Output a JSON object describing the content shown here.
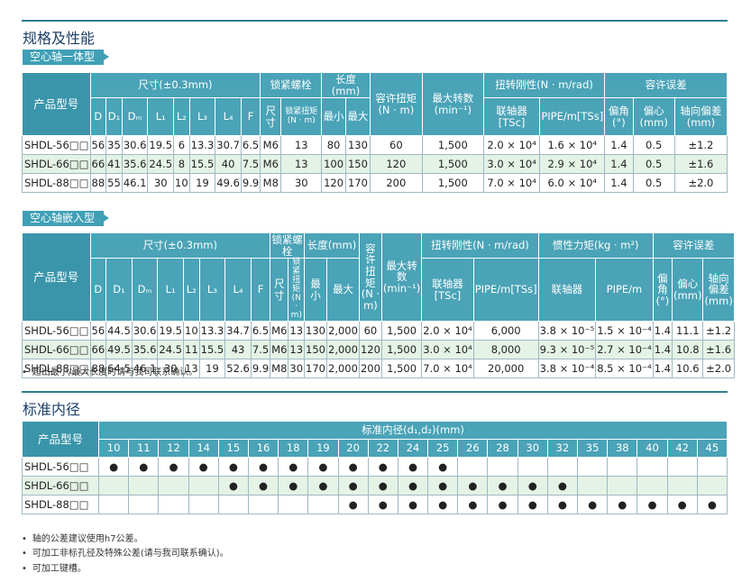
{
  "header": {
    "title": "规格及性能"
  },
  "table1": {
    "label": "空心轴一体型",
    "head1": [
      "产品型号",
      "尺寸(±0.3mm)",
      "锁紧螺栓",
      "长度(mm)",
      "容许扭矩(N · m)",
      "最大转数(min⁻¹)",
      "扭转刚性(N · m/rad)",
      "容许误差"
    ],
    "head2": [
      "D",
      "D₁",
      "Dₘ",
      "L₁",
      "L₂",
      "L₃",
      "L₄",
      "F",
      "尺寸",
      "锁紧扭矩(N · m)",
      "最小",
      "最大",
      "联轴器[TSc]",
      "PIPE/m[TSs]",
      "偏角(°)",
      "偏心(mm)",
      "轴向偏差(mm)"
    ],
    "rows": [
      [
        "SHDL-56□□",
        "56",
        "35",
        "30.6",
        "19.5",
        "6",
        "13.3",
        "30.7",
        "6.5",
        "M6",
        "13",
        "80",
        "130",
        "60",
        "1,500",
        "2.0 × 10⁴",
        "1.6 × 10⁴",
        "1.4",
        "0.5",
        "±1.2"
      ],
      [
        "SHDL-66□□",
        "66",
        "41",
        "35.6",
        "24.5",
        "8",
        "15.5",
        "40",
        "7.5",
        "M6",
        "13",
        "100",
        "150",
        "120",
        "1,500",
        "3.0 × 10⁴",
        "2.9 × 10⁴",
        "1.4",
        "0.5",
        "±1.6"
      ],
      [
        "SHDL-88□□",
        "88",
        "55",
        "46.1",
        "30",
        "10",
        "19",
        "49.6",
        "9.9",
        "M8",
        "30",
        "120",
        "170",
        "200",
        "1,500",
        "7.0 × 10⁴",
        "6.0 × 10⁴",
        "1.4",
        "0.5",
        "±2.0"
      ]
    ]
  },
  "table2": {
    "label": "空心轴嵌入型",
    "head1": [
      "产品型号",
      "尺寸(±0.3mm)",
      "锁紧螺栓",
      "长度(mm)",
      "容许扭矩(N · m)",
      "最大转数(min⁻¹)",
      "扭转刚性(N · m/rad)",
      "惯性力矩(kg · m²)",
      "容许误差"
    ],
    "head2": [
      "D",
      "D₁",
      "Dₘ",
      "L₁",
      "L₂",
      "L₃",
      "L₄",
      "F",
      "尺寸",
      "锁紧扭矩(N · m)",
      "最小",
      "最大",
      "联轴器[TSc]",
      "PIPE/m[TSs]",
      "联轴器",
      "PIPE/m",
      "偏角(°)",
      "偏心(mm)",
      "轴向偏差(mm)"
    ],
    "rows": [
      [
        "SHDL-56□□",
        "56",
        "44.5",
        "30.6",
        "19.5",
        "10",
        "13.3",
        "34.7",
        "6.5",
        "M6",
        "13",
        "130",
        "2,000",
        "60",
        "1,500",
        "2.0 × 10⁴",
        "6,000",
        "3.8 × 10⁻⁵",
        "1.5 × 10⁻⁴",
        "1.4",
        "11.1",
        "±1.2"
      ],
      [
        "SHDL-66□□",
        "66",
        "49.5",
        "35.6",
        "24.5",
        "11",
        "15.5",
        "43",
        "7.5",
        "M6",
        "13",
        "150",
        "2,000",
        "120",
        "1,500",
        "3.0 × 10⁴",
        "8,000",
        "9.3 × 10⁻⁵",
        "2.7 × 10⁻⁴",
        "1.4",
        "10.8",
        "±1.6"
      ],
      [
        "SHDL-88□□",
        "88",
        "64.5",
        "46.1",
        "30",
        "13",
        "19",
        "52.6",
        "9.9",
        "M8",
        "30",
        "170",
        "2,000",
        "200",
        "1,500",
        "7.0 × 10⁴",
        "20,000",
        "3.8 × 10⁻⁴",
        "8.5 × 10⁻⁴",
        "1.4",
        "10.6",
        "±2.0"
      ]
    ]
  },
  "notes1": [
    "超出最小/最大长度时请与我司联系确认。"
  ],
  "bore": {
    "title": "标准内径",
    "head1": [
      "产品型号",
      "标准内径(d₁,d₂)(mm)"
    ],
    "diameters": [
      "10",
      "11",
      "12",
      "14",
      "15",
      "16",
      "18",
      "19",
      "20",
      "22",
      "24",
      "25",
      "26",
      "28",
      "30",
      "32",
      "35",
      "38",
      "40",
      "42",
      "45"
    ],
    "rows": [
      {
        "model": "SHDL-56□□",
        "cells": [
          "●",
          "●",
          "●",
          "●",
          "●",
          "●",
          "●",
          "●",
          "●",
          "●",
          "●",
          "●",
          null,
          null,
          null,
          null,
          null,
          null,
          null,
          null,
          null
        ]
      },
      {
        "model": "SHDL-66□□",
        "cells": [
          null,
          null,
          null,
          null,
          "●",
          "●",
          "●",
          "●",
          "●",
          "●",
          "●",
          "●",
          "●",
          "●",
          "●",
          "●",
          null,
          null,
          null,
          null,
          null
        ]
      },
      {
        "model": "SHDL-88□□",
        "cells": [
          null,
          null,
          null,
          null,
          null,
          null,
          null,
          null,
          "●",
          "●",
          "●",
          "●",
          "●",
          "●",
          "●",
          "●",
          "●",
          "●",
          "●",
          "●",
          "●"
        ]
      }
    ]
  },
  "notes2": [
    "轴的公差建议使用h7公差。",
    "可加工非标孔径及特殊公差(请与我司联系确认)。",
    "可加工键槽。"
  ]
}
